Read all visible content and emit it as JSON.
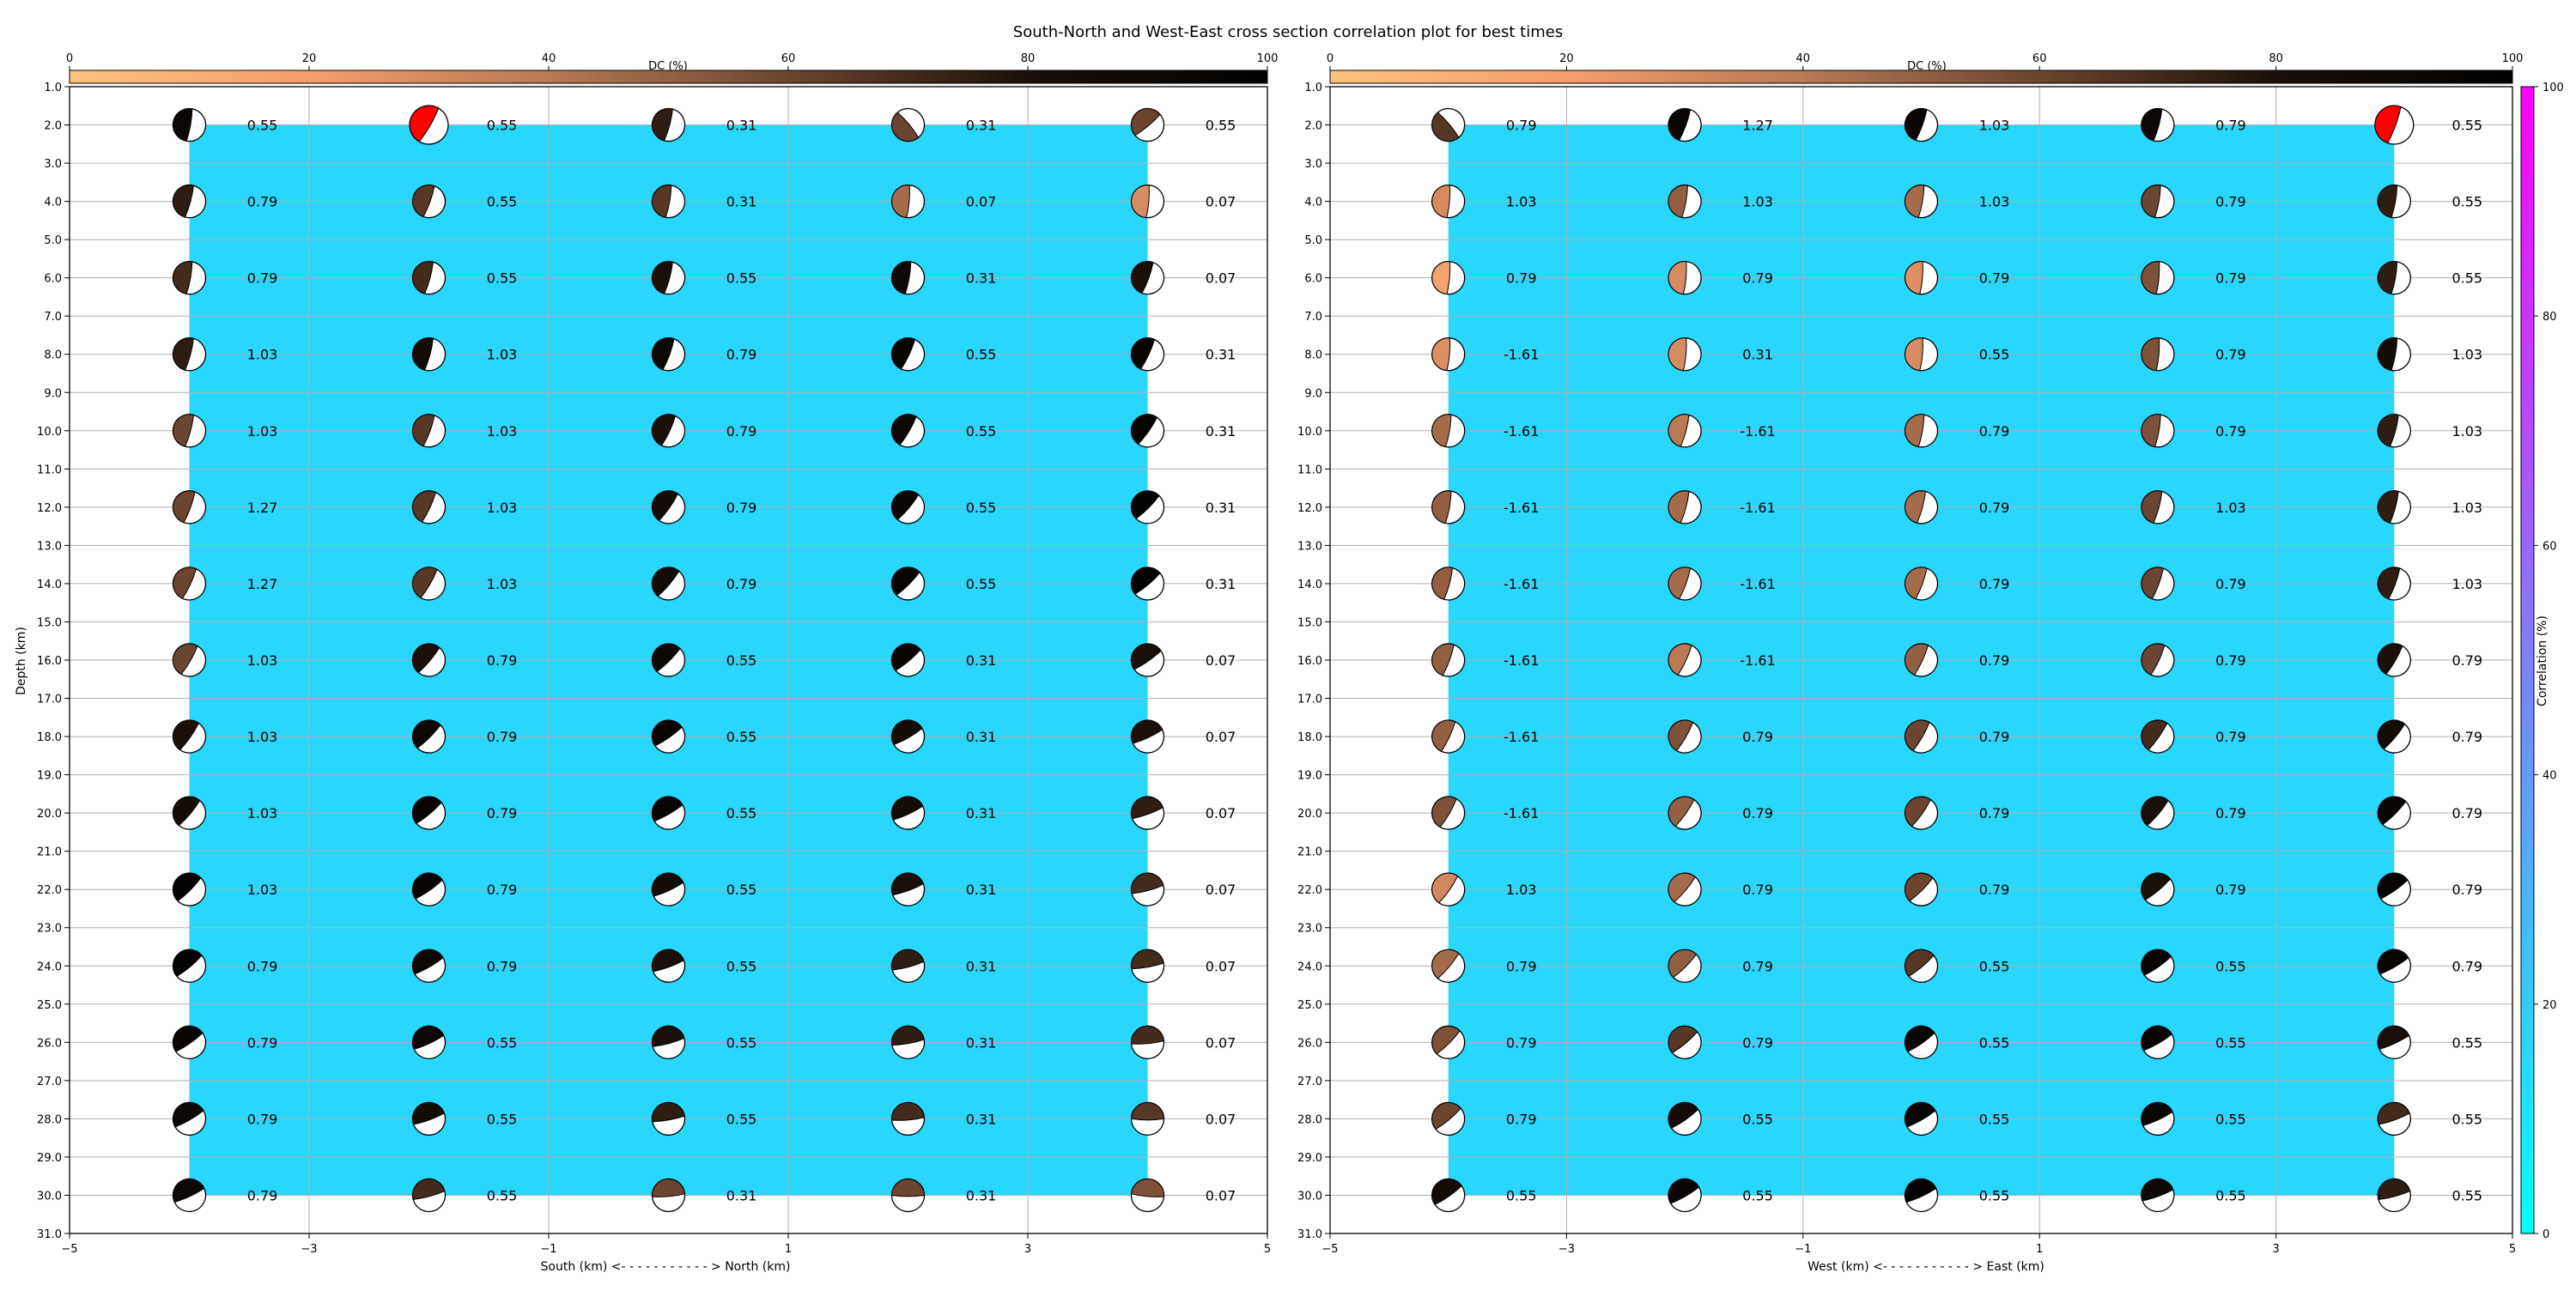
{
  "title": "South-North and West-East cross section correlation plot for best times",
  "colors": {
    "fill": "#29d6fc",
    "highlight": "#ff0000",
    "grid": "#b0b0b0",
    "dc_colormap": [
      "#fdc27f",
      "#f49e6c",
      "#b87954",
      "#6b4530",
      "#1a1009",
      "#000000"
    ],
    "corr_colormap": [
      "#00ffff",
      "#ff00ff"
    ]
  },
  "dc_colorbar": {
    "label": "DC (%)",
    "ticks": [
      0,
      20,
      40,
      60,
      80,
      100
    ]
  },
  "corr_colorbar": {
    "label": "Correlation (%)",
    "ticks": [
      0,
      20,
      40,
      60,
      80,
      100
    ]
  },
  "chart_data": [
    {
      "type": "scatter",
      "xlabel": "South (km) <- - - - - - - - - - - > North (km)",
      "ylabel": "Depth (km)",
      "xlim": [
        -5,
        5
      ],
      "ylim": [
        31,
        1
      ],
      "x_ticks": [
        -5,
        -3,
        -1,
        1,
        3,
        5
      ],
      "x_tick_labels": [
        "−5",
        "−3",
        "−1",
        "1",
        "3",
        "5"
      ],
      "y_ticks": [
        1,
        2,
        3,
        4,
        5,
        6,
        7,
        8,
        9,
        10,
        11,
        12,
        13,
        14,
        15,
        16,
        17,
        18,
        19,
        20,
        21,
        22,
        23,
        24,
        25,
        26,
        27,
        28,
        29,
        30,
        31
      ],
      "y_tick_labels": [
        "1.0",
        "2.0",
        "3.0",
        "4.0",
        "5.0",
        "6.0",
        "7.0",
        "8.0",
        "9.0",
        "10.0",
        "11.0",
        "12.0",
        "13.0",
        "14.0",
        "15.0",
        "16.0",
        "17.0",
        "18.0",
        "19.0",
        "20.0",
        "21.0",
        "22.0",
        "23.0",
        "24.0",
        "25.0",
        "26.0",
        "27.0",
        "28.0",
        "29.0",
        "30.0",
        "31.0"
      ],
      "fill_region": {
        "x": [
          -4,
          4
        ],
        "depth": [
          2,
          30
        ]
      },
      "x": [
        -4,
        -2,
        0,
        2,
        4
      ],
      "depths": [
        2,
        4,
        6,
        8,
        10,
        12,
        14,
        16,
        18,
        20,
        22,
        24,
        26,
        28,
        30
      ],
      "labels": [
        [
          "0.55",
          "0.55",
          "0.31",
          "0.31",
          "0.55"
        ],
        [
          "0.79",
          "0.55",
          "0.31",
          "0.07",
          "0.07"
        ],
        [
          "0.79",
          "0.55",
          "0.55",
          "0.31",
          "0.07"
        ],
        [
          "1.03",
          "1.03",
          "0.79",
          "0.55",
          "0.31"
        ],
        [
          "1.03",
          "1.03",
          "0.79",
          "0.55",
          "0.31"
        ],
        [
          "1.27",
          "1.03",
          "0.79",
          "0.55",
          "0.31"
        ],
        [
          "1.27",
          "1.03",
          "0.79",
          "0.55",
          "0.31"
        ],
        [
          "1.03",
          "0.79",
          "0.55",
          "0.31",
          "0.07"
        ],
        [
          "1.03",
          "0.79",
          "0.55",
          "0.31",
          "0.07"
        ],
        [
          "1.03",
          "0.79",
          "0.55",
          "0.31",
          "0.07"
        ],
        [
          "1.03",
          "0.79",
          "0.55",
          "0.31",
          "0.07"
        ],
        [
          "0.79",
          "0.79",
          "0.55",
          "0.31",
          "0.07"
        ],
        [
          "0.79",
          "0.55",
          "0.55",
          "0.31",
          "0.07"
        ],
        [
          "0.79",
          "0.55",
          "0.55",
          "0.31",
          "0.07"
        ],
        [
          "0.79",
          "0.55",
          "0.31",
          "0.31",
          "0.07"
        ]
      ],
      "dc": [
        [
          90,
          0,
          75,
          60,
          60
        ],
        [
          75,
          65,
          65,
          45,
          30
        ],
        [
          70,
          70,
          80,
          90,
          80
        ],
        [
          75,
          85,
          90,
          95,
          95
        ],
        [
          60,
          65,
          80,
          90,
          95
        ],
        [
          60,
          65,
          85,
          95,
          98
        ],
        [
          60,
          65,
          85,
          95,
          98
        ],
        [
          60,
          80,
          90,
          95,
          80
        ],
        [
          80,
          90,
          95,
          85,
          80
        ],
        [
          85,
          95,
          95,
          85,
          75
        ],
        [
          98,
          95,
          85,
          80,
          70
        ],
        [
          98,
          90,
          80,
          75,
          70
        ],
        [
          95,
          90,
          80,
          75,
          70
        ],
        [
          90,
          85,
          75,
          70,
          65
        ],
        [
          90,
          70,
          60,
          60,
          55
        ]
      ],
      "rotation": [
        [
          10,
          30,
          15,
          -40,
          50
        ],
        [
          15,
          20,
          10,
          5,
          5
        ],
        [
          10,
          15,
          15,
          10,
          20
        ],
        [
          15,
          15,
          20,
          25,
          25
        ],
        [
          15,
          20,
          25,
          30,
          35
        ],
        [
          20,
          25,
          35,
          40,
          45
        ],
        [
          25,
          30,
          40,
          45,
          50
        ],
        [
          30,
          40,
          45,
          50,
          55
        ],
        [
          35,
          45,
          55,
          60,
          65
        ],
        [
          40,
          50,
          60,
          65,
          70
        ],
        [
          45,
          55,
          65,
          70,
          75
        ],
        [
          50,
          60,
          70,
          75,
          80
        ],
        [
          55,
          65,
          75,
          80,
          85
        ],
        [
          60,
          70,
          80,
          85,
          90
        ],
        [
          65,
          75,
          85,
          90,
          95
        ]
      ],
      "highlight": [
        [
          0,
          1
        ]
      ]
    },
    {
      "type": "scatter",
      "xlabel": "West (km) <- - - - - - - - - - - > East (km)",
      "ylabel": "",
      "xlim": [
        -5,
        5
      ],
      "ylim": [
        31,
        1
      ],
      "x_ticks": [
        -5,
        -3,
        -1,
        1,
        3,
        5
      ],
      "x_tick_labels": [
        "−5",
        "−3",
        "−1",
        "1",
        "3",
        "5"
      ],
      "y_ticks": [
        1,
        2,
        3,
        4,
        5,
        6,
        7,
        8,
        9,
        10,
        11,
        12,
        13,
        14,
        15,
        16,
        17,
        18,
        19,
        20,
        21,
        22,
        23,
        24,
        25,
        26,
        27,
        28,
        29,
        30,
        31
      ],
      "y_tick_labels": [
        "1.0",
        "2.0",
        "3.0",
        "4.0",
        "5.0",
        "6.0",
        "7.0",
        "8.0",
        "9.0",
        "10.0",
        "11.0",
        "12.0",
        "13.0",
        "14.0",
        "15.0",
        "16.0",
        "17.0",
        "18.0",
        "19.0",
        "20.0",
        "21.0",
        "22.0",
        "23.0",
        "24.0",
        "25.0",
        "26.0",
        "27.0",
        "28.0",
        "29.0",
        "30.0",
        "31.0"
      ],
      "fill_region": {
        "x": [
          -4,
          4
        ],
        "depth": [
          2,
          30
        ]
      },
      "x": [
        -4,
        -2,
        0,
        2,
        4
      ],
      "depths": [
        2,
        4,
        6,
        8,
        10,
        12,
        14,
        16,
        18,
        20,
        22,
        24,
        26,
        28,
        30
      ],
      "labels": [
        [
          "0.79",
          "1.27",
          "1.03",
          "0.79",
          "0.55"
        ],
        [
          "1.03",
          "1.03",
          "1.03",
          "0.79",
          "0.55"
        ],
        [
          "0.79",
          "0.79",
          "0.79",
          "0.79",
          "0.55"
        ],
        [
          "-1.61",
          "0.31",
          "0.55",
          "0.79",
          "1.03"
        ],
        [
          "-1.61",
          "-1.61",
          "0.79",
          "0.79",
          "1.03"
        ],
        [
          "-1.61",
          "-1.61",
          "0.79",
          "1.03",
          "1.03"
        ],
        [
          "-1.61",
          "-1.61",
          "0.79",
          "0.79",
          "1.03"
        ],
        [
          "-1.61",
          "-1.61",
          "0.79",
          "0.79",
          "0.79"
        ],
        [
          "-1.61",
          "0.79",
          "0.79",
          "0.79",
          "0.79"
        ],
        [
          "-1.61",
          "0.79",
          "0.79",
          "0.79",
          "0.79"
        ],
        [
          "1.03",
          "0.79",
          "0.79",
          "0.79",
          "0.79"
        ],
        [
          "0.79",
          "0.79",
          "0.55",
          "0.55",
          "0.79"
        ],
        [
          "0.79",
          "0.79",
          "0.55",
          "0.55",
          "0.55"
        ],
        [
          "0.79",
          "0.55",
          "0.55",
          "0.55",
          "0.55"
        ],
        [
          "0.55",
          "0.55",
          "0.55",
          "0.55",
          "0.55"
        ]
      ],
      "dc": [
        [
          65,
          92,
          92,
          90,
          0
        ],
        [
          30,
          50,
          45,
          60,
          75
        ],
        [
          18,
          30,
          28,
          55,
          75
        ],
        [
          28,
          30,
          30,
          55,
          85
        ],
        [
          45,
          40,
          45,
          55,
          75
        ],
        [
          50,
          45,
          45,
          60,
          75
        ],
        [
          50,
          45,
          45,
          60,
          75
        ],
        [
          50,
          40,
          50,
          60,
          80
        ],
        [
          50,
          55,
          60,
          70,
          85
        ],
        [
          55,
          50,
          60,
          80,
          95
        ],
        [
          32,
          45,
          60,
          80,
          95
        ],
        [
          45,
          50,
          65,
          95,
          95
        ],
        [
          55,
          65,
          92,
          95,
          80
        ],
        [
          60,
          85,
          92,
          92,
          70
        ],
        [
          85,
          92,
          97,
          90,
          75
        ]
      ],
      "rotation": [
        [
          -40,
          20,
          20,
          15,
          20
        ],
        [
          5,
          10,
          10,
          10,
          10
        ],
        [
          5,
          5,
          5,
          5,
          10
        ],
        [
          5,
          5,
          5,
          5,
          10
        ],
        [
          10,
          15,
          10,
          10,
          15
        ],
        [
          10,
          15,
          15,
          15,
          15
        ],
        [
          15,
          20,
          20,
          20,
          20
        ],
        [
          20,
          25,
          25,
          25,
          30
        ],
        [
          25,
          30,
          30,
          35,
          40
        ],
        [
          30,
          35,
          35,
          40,
          45
        ],
        [
          35,
          40,
          45,
          50,
          55
        ],
        [
          40,
          45,
          50,
          55,
          60
        ],
        [
          45,
          50,
          55,
          60,
          65
        ],
        [
          50,
          55,
          60,
          65,
          70
        ],
        [
          55,
          60,
          65,
          70,
          75
        ]
      ],
      "highlight": [
        [
          0,
          4
        ]
      ]
    }
  ]
}
